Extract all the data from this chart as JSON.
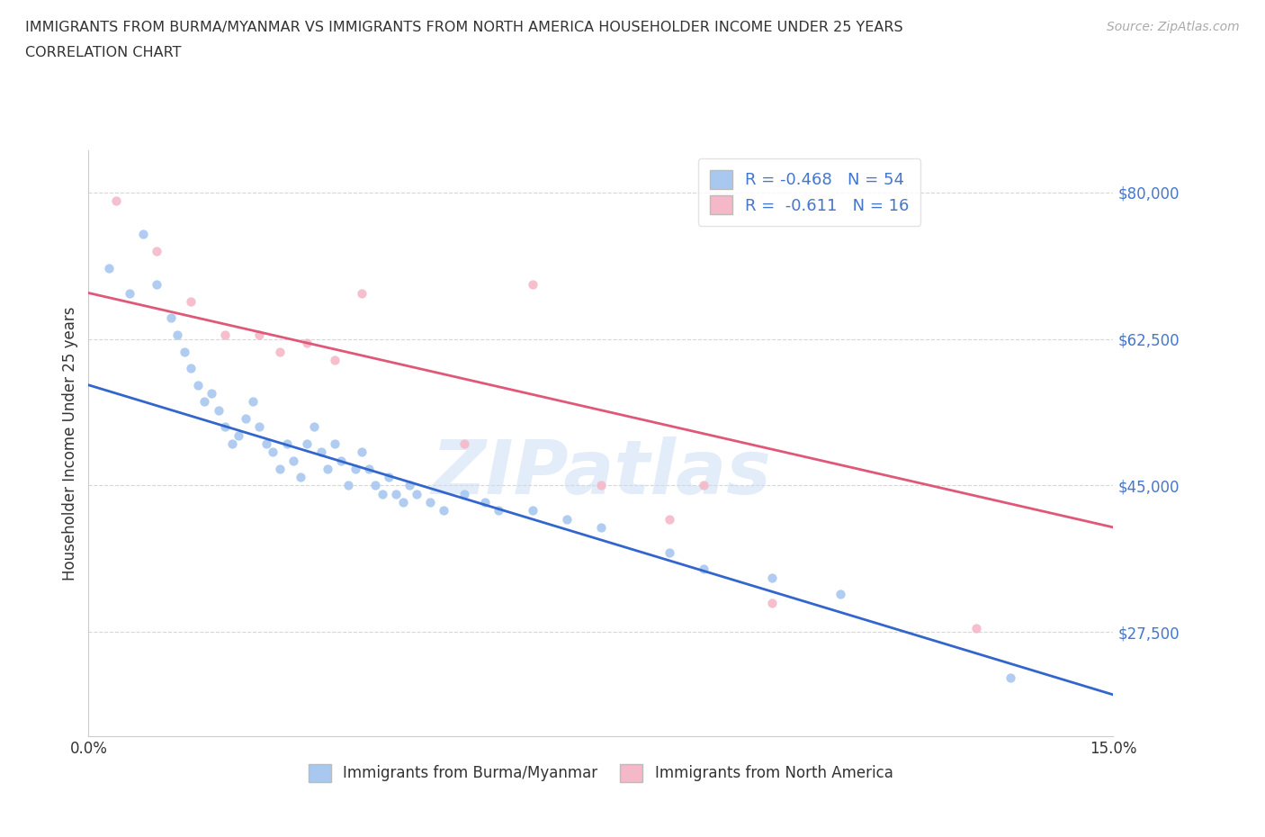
{
  "title_line1": "IMMIGRANTS FROM BURMA/MYANMAR VS IMMIGRANTS FROM NORTH AMERICA HOUSEHOLDER INCOME UNDER 25 YEARS",
  "title_line2": "CORRELATION CHART",
  "source": "Source: ZipAtlas.com",
  "ylabel": "Householder Income Under 25 years",
  "xlim": [
    0.0,
    0.15
  ],
  "ylim": [
    15000,
    85000
  ],
  "yticks": [
    27500,
    45000,
    62500,
    80000
  ],
  "ytick_labels": [
    "$27,500",
    "$45,000",
    "$62,500",
    "$80,000"
  ],
  "xticks": [
    0.0,
    0.03,
    0.06,
    0.09,
    0.12,
    0.15
  ],
  "xtick_labels": [
    "0.0%",
    "",
    "",
    "",
    "",
    "15.0%"
  ],
  "blue_color": "#a8c8f0",
  "pink_color": "#f5b8c8",
  "blue_line_color": "#3366cc",
  "pink_line_color": "#e05878",
  "tick_color": "#4477cc",
  "R_blue": -0.468,
  "N_blue": 54,
  "R_pink": -0.611,
  "N_pink": 16,
  "watermark": "ZIPatlas",
  "blue_scatter_x": [
    0.003,
    0.006,
    0.008,
    0.01,
    0.012,
    0.013,
    0.014,
    0.015,
    0.016,
    0.017,
    0.018,
    0.019,
    0.02,
    0.021,
    0.022,
    0.023,
    0.024,
    0.025,
    0.026,
    0.027,
    0.028,
    0.029,
    0.03,
    0.031,
    0.032,
    0.033,
    0.034,
    0.035,
    0.036,
    0.037,
    0.038,
    0.039,
    0.04,
    0.041,
    0.042,
    0.043,
    0.044,
    0.045,
    0.046,
    0.047,
    0.048,
    0.05,
    0.052,
    0.055,
    0.058,
    0.06,
    0.065,
    0.07,
    0.075,
    0.085,
    0.09,
    0.1,
    0.11,
    0.135
  ],
  "blue_scatter_y": [
    71000,
    68000,
    75000,
    69000,
    65000,
    63000,
    61000,
    59000,
    57000,
    55000,
    56000,
    54000,
    52000,
    50000,
    51000,
    53000,
    55000,
    52000,
    50000,
    49000,
    47000,
    50000,
    48000,
    46000,
    50000,
    52000,
    49000,
    47000,
    50000,
    48000,
    45000,
    47000,
    49000,
    47000,
    45000,
    44000,
    46000,
    44000,
    43000,
    45000,
    44000,
    43000,
    42000,
    44000,
    43000,
    42000,
    42000,
    41000,
    40000,
    37000,
    35000,
    34000,
    32000,
    22000
  ],
  "pink_scatter_x": [
    0.004,
    0.01,
    0.015,
    0.02,
    0.025,
    0.028,
    0.032,
    0.036,
    0.04,
    0.055,
    0.065,
    0.075,
    0.085,
    0.09,
    0.1,
    0.13
  ],
  "pink_scatter_y": [
    79000,
    73000,
    67000,
    63000,
    63000,
    61000,
    62000,
    60000,
    68000,
    50000,
    69000,
    45000,
    41000,
    45000,
    31000,
    28000
  ],
  "blue_line_x0": 0.0,
  "blue_line_y0": 57000,
  "blue_line_x1": 0.15,
  "blue_line_y1": 20000,
  "pink_line_x0": 0.0,
  "pink_line_y0": 68000,
  "pink_line_x1": 0.15,
  "pink_line_y1": 40000,
  "background_color": "#ffffff",
  "grid_color": "#cccccc"
}
